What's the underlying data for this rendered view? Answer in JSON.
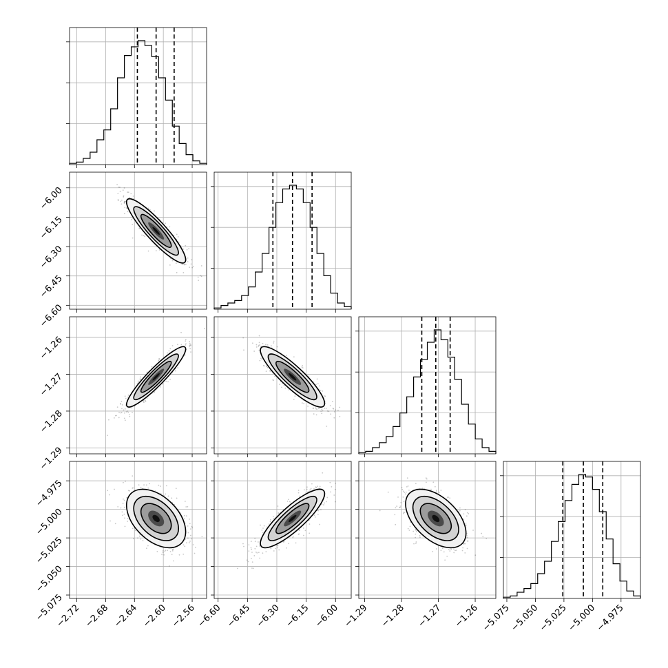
{
  "chart_data": {
    "type": "corner",
    "style": {
      "color_ink": "#000000",
      "color_grid": "#b0b0b0",
      "color_background": "#ffffff"
    },
    "grid": true,
    "parameters": [
      {
        "range": [
          -2.73,
          -2.54
        ],
        "ticks": [
          -2.72,
          -2.68,
          -2.64,
          -2.6,
          -2.56
        ],
        "tick_labels": [
          "−2.72",
          "−2.68",
          "−2.64",
          "−2.60",
          "−2.56"
        ],
        "quantiles": [
          -2.636,
          -2.61,
          -2.585
        ],
        "hist": [
          0.01,
          0.02,
          0.05,
          0.1,
          0.2,
          0.28,
          0.45,
          0.7,
          0.88,
          0.95,
          1.0,
          0.96,
          0.87,
          0.7,
          0.52,
          0.31,
          0.17,
          0.08,
          0.03,
          0.01
        ]
      },
      {
        "range": [
          -6.62,
          -5.92
        ],
        "ticks": [
          -6.6,
          -6.45,
          -6.3,
          -6.15,
          -6.0
        ],
        "tick_labels": [
          "−6.60",
          "−6.45",
          "−6.30",
          "−6.15",
          "−6.00"
        ],
        "quantiles": [
          -6.32,
          -6.22,
          -6.12
        ],
        "hist": [
          0.01,
          0.03,
          0.05,
          0.07,
          0.11,
          0.18,
          0.3,
          0.45,
          0.66,
          0.86,
          0.97,
          1.0,
          0.97,
          0.86,
          0.66,
          0.45,
          0.27,
          0.13,
          0.05,
          0.02
        ]
      },
      {
        "range": [
          -1.2916,
          -1.2544
        ],
        "ticks": [
          -1.29,
          -1.28,
          -1.27,
          -1.26
        ],
        "tick_labels": [
          "−1.29",
          "−1.28",
          "−1.27",
          "−1.26"
        ],
        "quantiles": [
          -1.2745,
          -1.2707,
          -1.2668
        ],
        "hist": [
          0.01,
          0.02,
          0.05,
          0.09,
          0.14,
          0.22,
          0.33,
          0.46,
          0.62,
          0.76,
          0.9,
          1.0,
          0.92,
          0.78,
          0.6,
          0.4,
          0.24,
          0.12,
          0.05,
          0.02
        ]
      },
      {
        "range": [
          -5.078,
          -4.958
        ],
        "ticks": [
          -5.075,
          -5.05,
          -5.025,
          -5.0,
          -4.975
        ],
        "tick_labels": [
          "−5.075",
          "−5.050",
          "−5.025",
          "−5.000",
          "−4.975"
        ],
        "quantiles": [
          -5.026,
          -5.008,
          -4.991
        ],
        "hist": [
          0.01,
          0.02,
          0.05,
          0.08,
          0.12,
          0.2,
          0.3,
          0.46,
          0.62,
          0.79,
          0.92,
          1.0,
          0.98,
          0.88,
          0.7,
          0.48,
          0.28,
          0.14,
          0.06,
          0.02
        ]
      }
    ],
    "pairs": [
      {
        "x": 0,
        "y": 1,
        "center": [
          -2.61,
          -6.22
        ],
        "sigma": [
          0.02,
          0.08
        ],
        "rho": -0.9
      },
      {
        "x": 0,
        "y": 2,
        "center": [
          -2.61,
          -1.2707
        ],
        "sigma": [
          0.02,
          0.004
        ],
        "rho": 0.92
      },
      {
        "x": 1,
        "y": 2,
        "center": [
          -6.22,
          -1.2707
        ],
        "sigma": [
          0.08,
          0.004
        ],
        "rho": -0.88
      },
      {
        "x": 0,
        "y": 3,
        "center": [
          -2.61,
          -5.008
        ],
        "sigma": [
          0.02,
          0.0125
        ],
        "rho": -0.45
      },
      {
        "x": 1,
        "y": 3,
        "center": [
          -6.22,
          -5.008
        ],
        "sigma": [
          0.08,
          0.0125
        ],
        "rho": 0.85
      },
      {
        "x": 2,
        "y": 3,
        "center": [
          -1.2707,
          -5.008
        ],
        "sigma": [
          0.004,
          0.0125
        ],
        "rho": -0.5
      }
    ]
  }
}
